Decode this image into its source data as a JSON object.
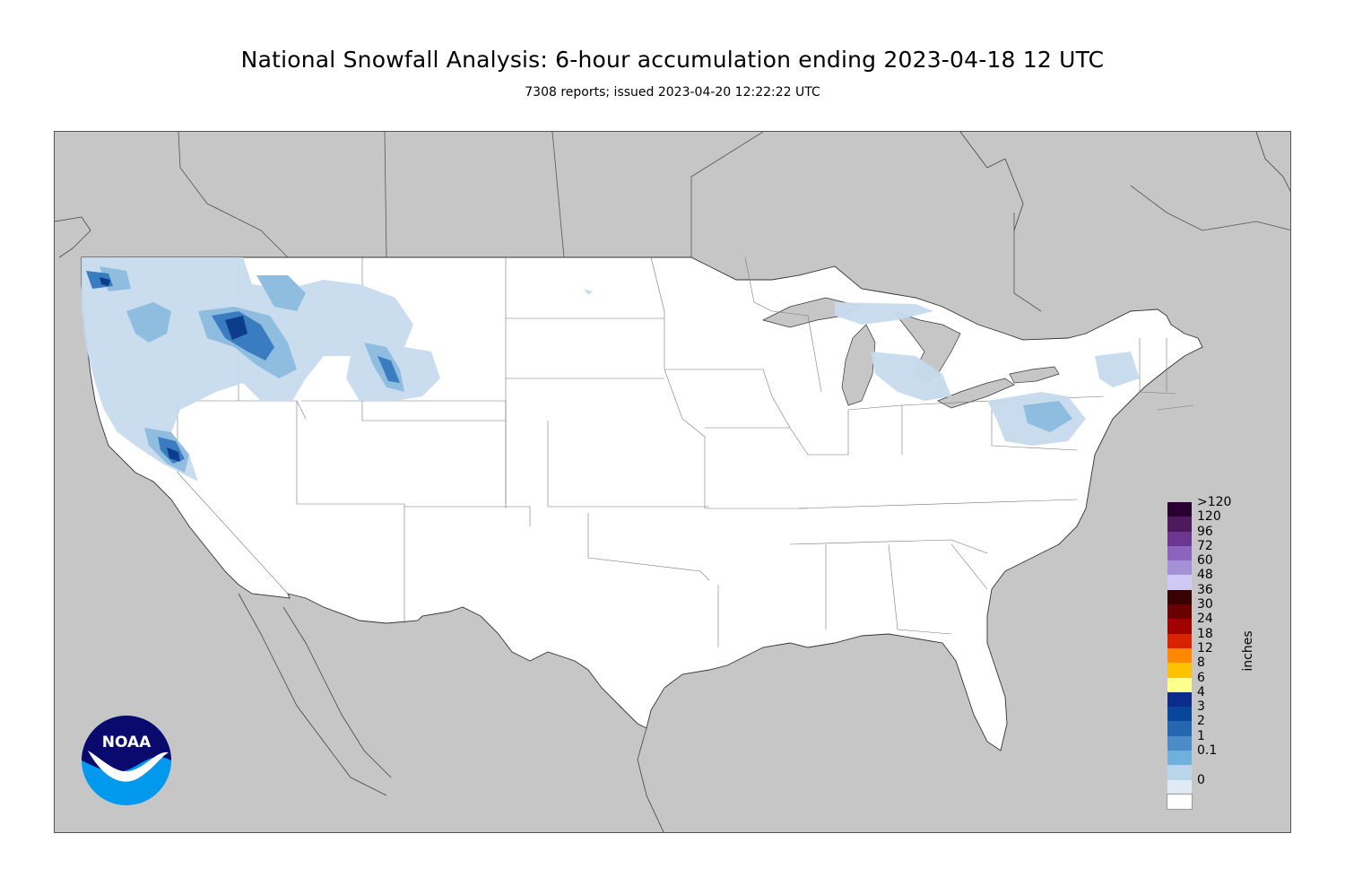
{
  "header": {
    "title": "National Snowfall Analysis: 6-hour accumulation ending 2023-04-18 12 UTC",
    "subtitle": "7308 reports; issued 2023-04-20 12:22:22 UTC"
  },
  "map": {
    "land_color": "#ffffff",
    "outside_color": "#c6c6c6",
    "border_color": "#555555",
    "snow_colors": {
      "trace": "#deebf7",
      "light": "#b9d5ea",
      "moderate": "#6aaed6",
      "heavy": "#2171b5",
      "very_heavy": "#084594"
    }
  },
  "legend": {
    "units": "inches",
    "bins": [
      {
        "label": ">120",
        "color": "#2a0033"
      },
      {
        "label": "120",
        "color": "#4d1a5e"
      },
      {
        "label": "96",
        "color": "#6b3790"
      },
      {
        "label": "72",
        "color": "#8c64c0"
      },
      {
        "label": "60",
        "color": "#a591d8"
      },
      {
        "label": "48",
        "color": "#cfcaf5"
      },
      {
        "label": "36",
        "color": "#3a0000"
      },
      {
        "label": "30",
        "color": "#6b0000"
      },
      {
        "label": "24",
        "color": "#a30000"
      },
      {
        "label": "18",
        "color": "#d92200"
      },
      {
        "label": "12",
        "color": "#ff8800"
      },
      {
        "label": "8",
        "color": "#ffc200"
      },
      {
        "label": "6",
        "color": "#ffff8e"
      },
      {
        "label": "4",
        "color": "#0b2c8a"
      },
      {
        "label": "3",
        "color": "#08469c"
      },
      {
        "label": "2",
        "color": "#2566b0"
      },
      {
        "label": "1",
        "color": "#4a8bc8"
      },
      {
        "label": "0.1",
        "color": "#6fb0dd"
      },
      {
        "label": "",
        "color": "#b9d5ea"
      },
      {
        "label": "0",
        "color": "#dfeaf5"
      },
      {
        "label": "",
        "color": "#ffffff"
      }
    ]
  },
  "logo": {
    "text": "NOAA",
    "icon": "noaa-logo-icon",
    "top_color": "#0a0a6e",
    "bottom_color": "#0099ee"
  }
}
